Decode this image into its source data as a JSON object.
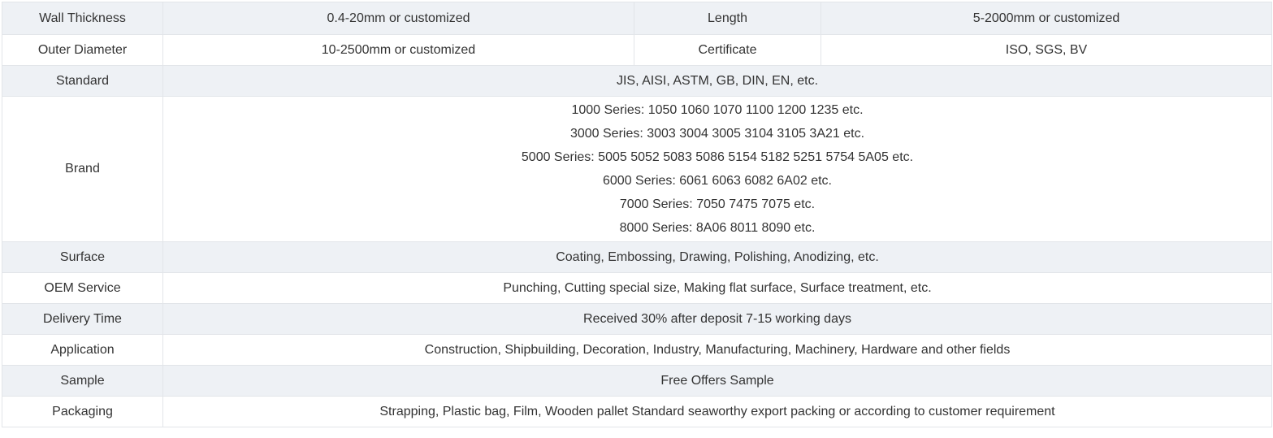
{
  "colors": {
    "stripe_background": "#eef1f5",
    "row_background": "#ffffff",
    "border": "#e2e5e9",
    "text": "#333333"
  },
  "table": {
    "rows": [
      {
        "cells": [
          "Wall Thickness",
          "0.4-20mm or customized",
          "Length",
          "5-2000mm or customized"
        ]
      },
      {
        "cells": [
          "Outer Diameter",
          "10-2500mm or customized",
          "Certificate",
          "ISO, SGS, BV"
        ]
      },
      {
        "label": "Standard",
        "value": "JIS, AISI, ASTM, GB, DIN, EN, etc."
      },
      {
        "label": "Brand",
        "lines": [
          "1000 Series: 1050 1060 1070 1100 1200 1235 etc.",
          "3000 Series: 3003 3004 3005 3104 3105 3A21 etc.",
          "5000 Series: 5005 5052 5083 5086 5154 5182 5251 5754 5A05 etc.",
          "6000 Series: 6061 6063 6082 6A02 etc.",
          "7000 Series: 7050 7475 7075 etc.",
          "8000 Series: 8A06 8011 8090 etc."
        ]
      },
      {
        "label": "Surface",
        "value": "Coating, Embossing, Drawing, Polishing, Anodizing, etc."
      },
      {
        "label": "OEM Service",
        "value": "Punching, Cutting special size, Making flat surface, Surface treatment, etc."
      },
      {
        "label": "Delivery Time",
        "value": "Received 30% after deposit 7-15 working days"
      },
      {
        "label": "Application",
        "value": "Construction, Shipbuilding, Decoration, Industry, Manufacturing, Machinery, Hardware and other fields"
      },
      {
        "label": "Sample",
        "value": "Free Offers Sample"
      },
      {
        "label": "Packaging",
        "value": "Strapping, Plastic bag, Film, Wooden pallet Standard seaworthy export packing or according to customer requirement"
      }
    ]
  }
}
